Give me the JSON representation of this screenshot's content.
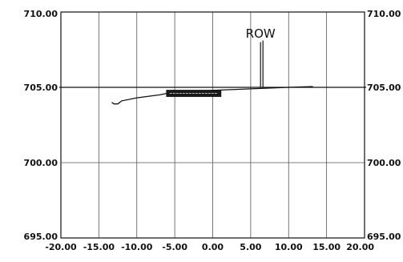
{
  "chart_data": {
    "type": "line",
    "title": "",
    "xlabel": "",
    "ylabel": "",
    "xlim": [
      -20,
      20
    ],
    "ylim": [
      695,
      710
    ],
    "grid": true,
    "x_ticks": [
      -20,
      -15,
      -10,
      -5,
      0,
      5,
      10,
      15,
      20
    ],
    "x_tick_labels": [
      "-20.00",
      "-15.00",
      "-10.00",
      "-5.00",
      "0.00",
      "5.00",
      "10.00",
      "15.00",
      "20.00"
    ],
    "y_ticks": [
      695,
      700,
      705,
      710
    ],
    "y_tick_labels": [
      "695.00",
      "700.00",
      "705.00",
      "710.00"
    ],
    "series": [
      {
        "color": "#111111",
        "x": [
          -13.3,
          -13.0,
          -12.5,
          -12.0,
          -10.0,
          -7.0,
          -5.0,
          0.0,
          5.0,
          10.0,
          13.2
        ],
        "y": [
          704.0,
          703.9,
          703.9,
          704.1,
          704.3,
          704.5,
          704.7,
          704.8,
          704.9,
          705.0,
          705.05
        ]
      }
    ],
    "annotations": [
      {
        "id": "row",
        "text": "ROW",
        "x": 6.3,
        "y": 708.3
      },
      {
        "id": "marker",
        "text": "",
        "x": -2.5,
        "y": 704.6
      }
    ],
    "marker_lines": [
      {
        "x": 6.3,
        "y_from": 705.0,
        "y_to": 708.0
      }
    ]
  }
}
